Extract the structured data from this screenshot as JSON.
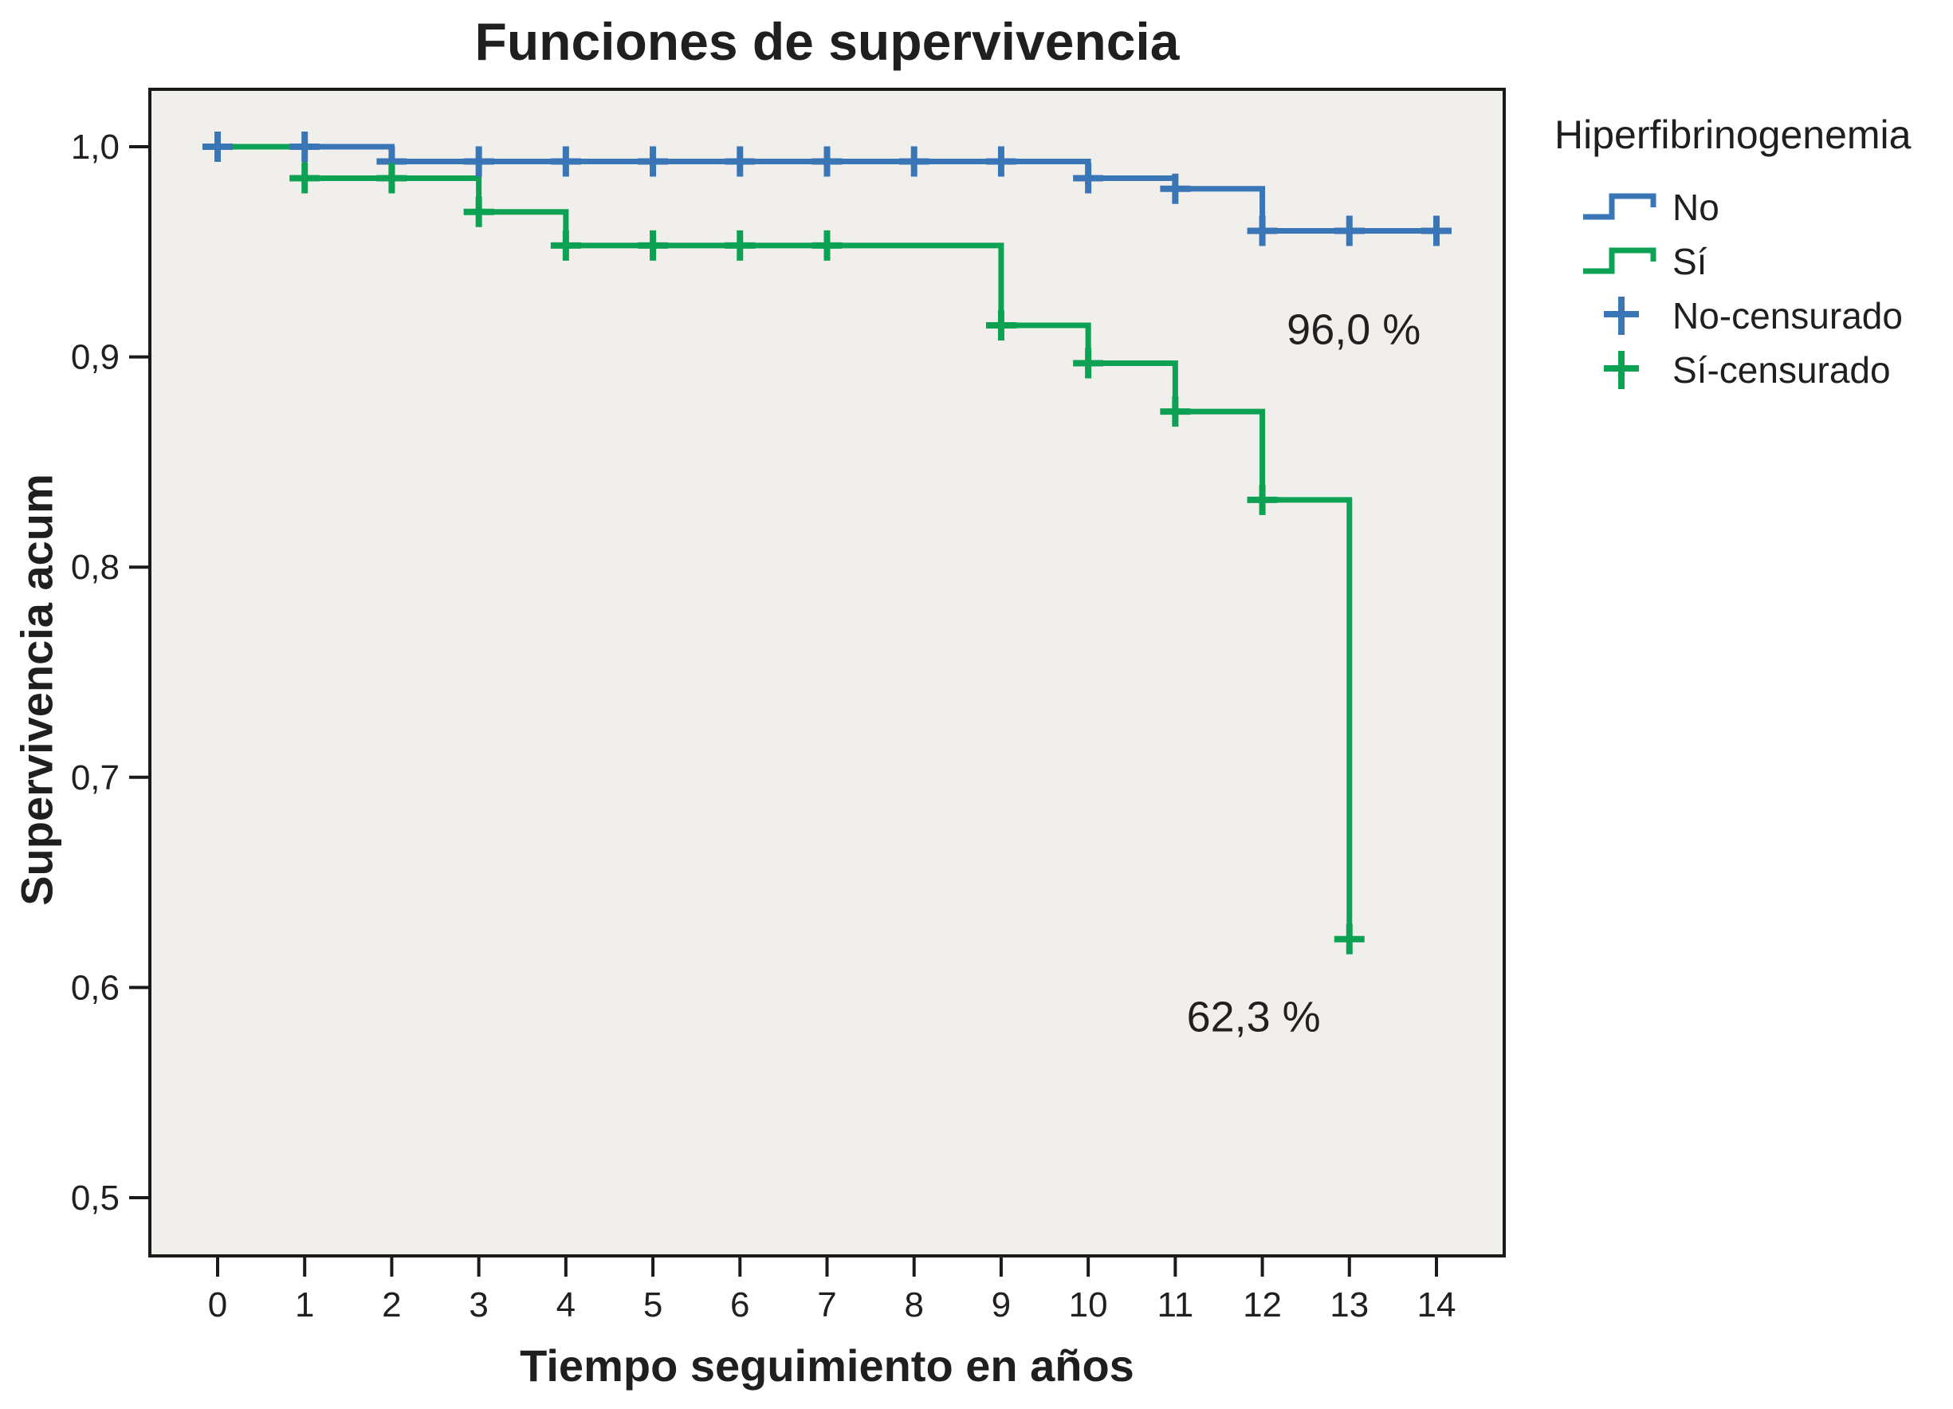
{
  "title": "Funciones de supervivencia",
  "x_axis": {
    "label": "Tiempo seguimiento en años"
  },
  "y_axis": {
    "label": "Supervivencia acum"
  },
  "legend": {
    "title": "Hiperfibrinogenemia",
    "items": [
      {
        "label": "No"
      },
      {
        "label": "Sí"
      },
      {
        "label": "No-censurado"
      },
      {
        "label": "Sí-censurado"
      }
    ]
  },
  "annotations": {
    "no_final": "96,0 %",
    "si_final": "62,3 %"
  },
  "colors": {
    "no": "#3a76b5",
    "si": "#0ca153",
    "plot_bg": "#f0efec",
    "axis": "#1a1a1a",
    "text": "#231f20"
  },
  "chart_data": {
    "type": "line",
    "variant": "kaplan_meier_step",
    "title": "Funciones de supervivencia",
    "xlabel": "Tiempo seguimiento en años",
    "ylabel": "Supervivencia acum",
    "xlim": [
      0,
      14
    ],
    "ylim": [
      0.5,
      1.0
    ],
    "grid": false,
    "legend_position": "right",
    "legend_title": "Hiperfibrinogenemia",
    "x_ticks": [
      0,
      1,
      2,
      3,
      4,
      5,
      6,
      7,
      8,
      9,
      10,
      11,
      12,
      13,
      14
    ],
    "y_ticks": [
      {
        "v": 1.0,
        "label": "1,0"
      },
      {
        "v": 0.9,
        "label": "0,9"
      },
      {
        "v": 0.8,
        "label": "0,8"
      },
      {
        "v": 0.7,
        "label": "0,7"
      },
      {
        "v": 0.6,
        "label": "0,6"
      },
      {
        "v": 0.5,
        "label": "0,5"
      }
    ],
    "series": [
      {
        "name": "No",
        "color": "#3a76b5",
        "steps": [
          [
            0,
            1.0
          ],
          [
            2,
            0.993
          ],
          [
            10,
            0.985
          ],
          [
            11,
            0.98
          ],
          [
            12,
            0.96
          ]
        ],
        "end_x": 14.1,
        "censored": [
          [
            0,
            1.0
          ],
          [
            1,
            1.0
          ],
          [
            2,
            0.993
          ],
          [
            3,
            0.993
          ],
          [
            4,
            0.993
          ],
          [
            5,
            0.993
          ],
          [
            6,
            0.993
          ],
          [
            7,
            0.993
          ],
          [
            8,
            0.993
          ],
          [
            9,
            0.993
          ],
          [
            10,
            0.985
          ],
          [
            11,
            0.98
          ],
          [
            12,
            0.96
          ],
          [
            13,
            0.96
          ],
          [
            14,
            0.96
          ]
        ],
        "final_survival_label": "96,0 %"
      },
      {
        "name": "Sí",
        "color": "#0ca153",
        "steps": [
          [
            0,
            1.0
          ],
          [
            1,
            0.985
          ],
          [
            3,
            0.969
          ],
          [
            4,
            0.953
          ],
          [
            9,
            0.915
          ],
          [
            10,
            0.897
          ],
          [
            11,
            0.874
          ],
          [
            12,
            0.832
          ],
          [
            13,
            0.623
          ]
        ],
        "end_x": 13,
        "censored": [
          [
            1,
            0.985
          ],
          [
            2,
            0.985
          ],
          [
            3,
            0.969
          ],
          [
            4,
            0.953
          ],
          [
            5,
            0.953
          ],
          [
            6,
            0.953
          ],
          [
            7,
            0.953
          ],
          [
            9,
            0.915
          ],
          [
            10,
            0.897
          ],
          [
            11,
            0.874
          ],
          [
            12,
            0.832
          ],
          [
            13,
            0.623
          ]
        ],
        "final_survival_label": "62,3 %"
      }
    ],
    "annotations": [
      {
        "text": "96,0 %",
        "x": 13.05,
        "y": 0.913
      },
      {
        "text": "62,3 %",
        "x": 11.9,
        "y": 0.586
      }
    ]
  }
}
